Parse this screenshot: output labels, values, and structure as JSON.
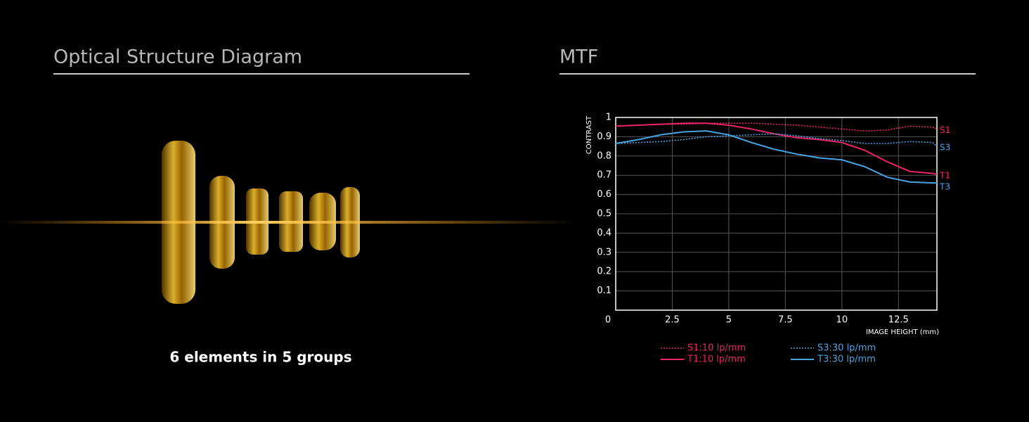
{
  "optical_structure": {
    "title": "Optical Structure Diagram",
    "caption": "6 elements in 5 groups"
  },
  "chart_data": {
    "type": "line",
    "title": "MTF",
    "ylabel": "CONTRAST",
    "xlabel": "IMAGE HEIGHT  (mm)",
    "x": [
      0,
      1,
      2,
      3,
      4,
      5,
      6,
      7,
      8,
      9,
      10,
      11,
      12,
      13,
      14,
      14.2
    ],
    "series": [
      {
        "name": "S1:10 lp/mm",
        "label": "S1",
        "color": "#e8246a",
        "style": "dotted",
        "values": [
          0.955,
          0.96,
          0.965,
          0.965,
          0.97,
          0.97,
          0.97,
          0.965,
          0.96,
          0.95,
          0.94,
          0.93,
          0.935,
          0.955,
          0.95,
          0.94
        ]
      },
      {
        "name": "T1:10 lp/mm",
        "label": "T1",
        "color": "#e8246a",
        "style": "solid",
        "values": [
          0.955,
          0.96,
          0.965,
          0.97,
          0.97,
          0.96,
          0.94,
          0.915,
          0.895,
          0.885,
          0.87,
          0.83,
          0.77,
          0.72,
          0.71,
          0.705
        ]
      },
      {
        "name": "S3:30 lp/mm",
        "label": "S3",
        "color": "#4aa3e0",
        "style": "dotted",
        "values": [
          0.865,
          0.87,
          0.875,
          0.885,
          0.9,
          0.905,
          0.91,
          0.915,
          0.905,
          0.89,
          0.88,
          0.865,
          0.865,
          0.875,
          0.87,
          0.85
        ]
      },
      {
        "name": "T3:30 lp/mm",
        "label": "T3",
        "color": "#4aa3e0",
        "style": "solid",
        "values": [
          0.865,
          0.885,
          0.91,
          0.925,
          0.93,
          0.91,
          0.87,
          0.835,
          0.81,
          0.79,
          0.78,
          0.745,
          0.69,
          0.665,
          0.66,
          0.66
        ]
      }
    ],
    "xlim": [
      0,
      14.2
    ],
    "ylim": [
      0,
      1
    ],
    "xticks": [
      0,
      2.5,
      5,
      7.5,
      10,
      12.5
    ],
    "yticks": [
      0.1,
      0.2,
      0.3,
      0.4,
      0.5,
      0.6,
      0.7,
      0.8,
      0.9,
      1
    ],
    "grid": true
  }
}
